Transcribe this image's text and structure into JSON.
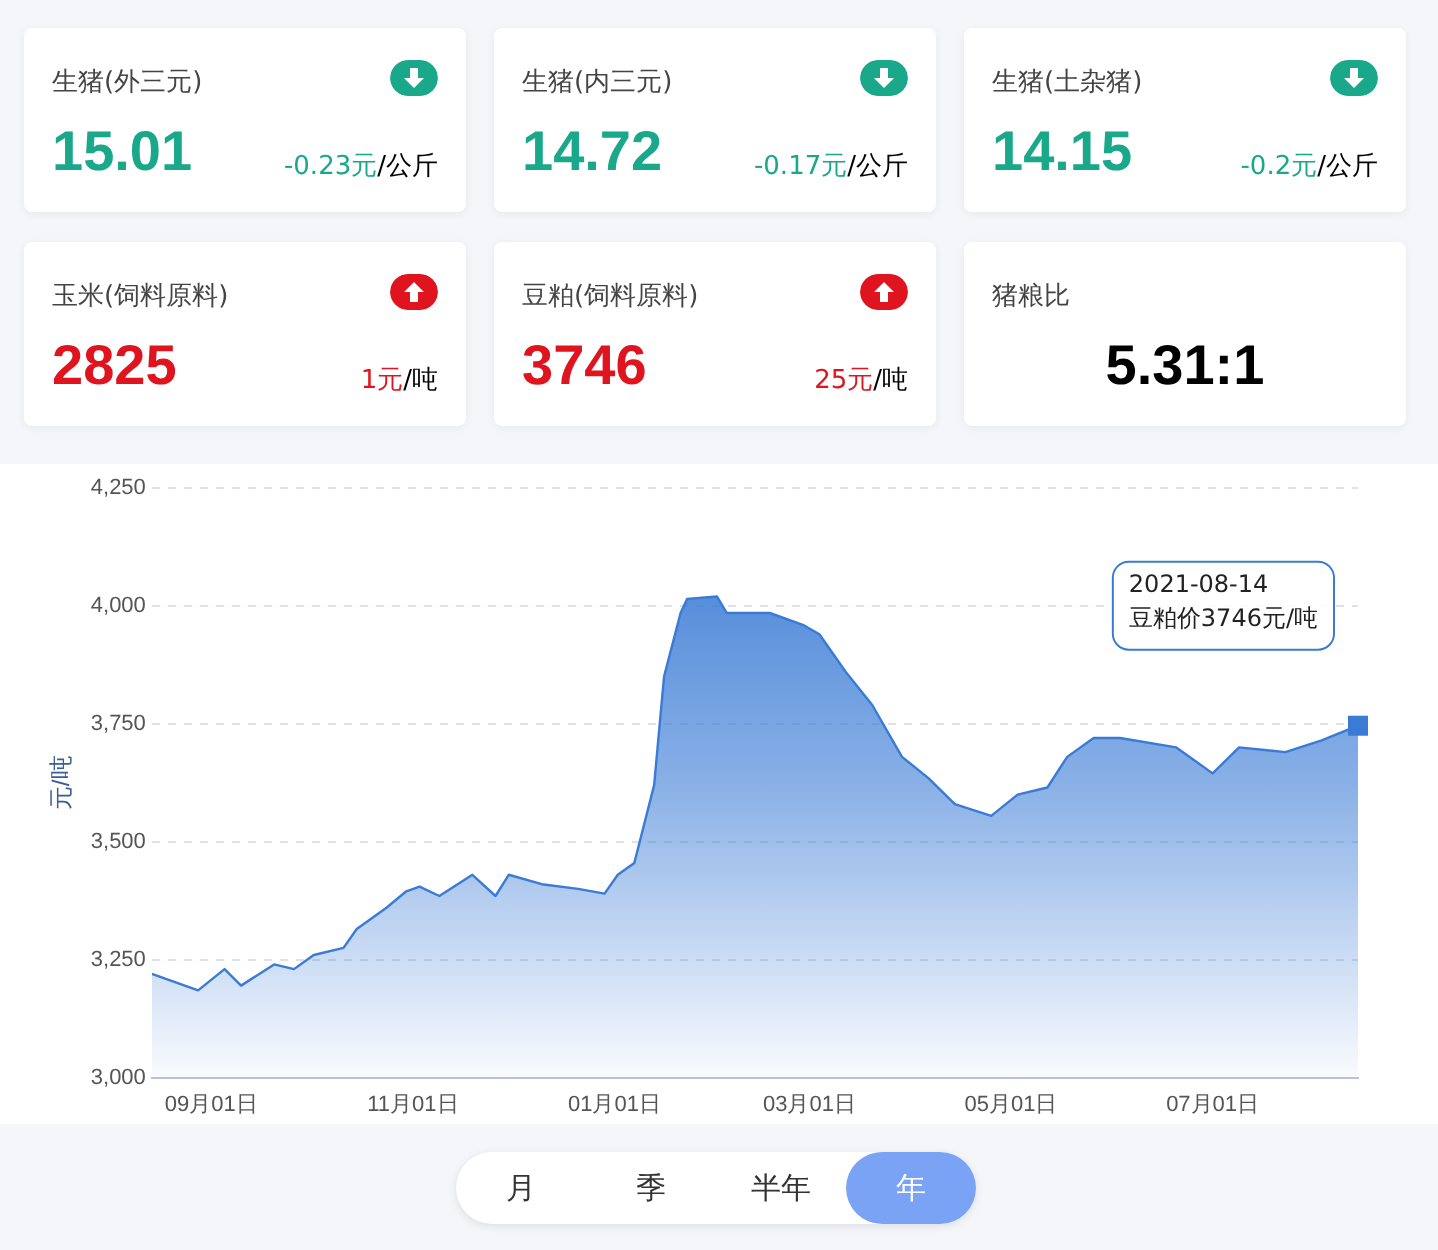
{
  "chart_data": [
    {
      "type": "other",
      "categories": [
        "生猪(外三元)",
        "生猪(内三元)",
        "生猪(土杂猪)",
        "玉米(饲料原料)",
        "豆粕(饲料原料)",
        "猪粮比"
      ],
      "value_labels": [
        "15.01",
        "14.72",
        "14.15",
        "2825",
        "3746",
        "5.31:1"
      ],
      "annotations": [
        "-0.23元/公斤",
        "-0.17元/公斤",
        "-0.2元/公斤",
        "1元/吨",
        "25元/吨"
      ]
    },
    {
      "type": "area",
      "ylabel": "元/吨",
      "x": [
        "2020-08-14",
        "2020-08-28",
        "2020-09-05",
        "2020-09-10",
        "2020-09-20",
        "2020-09-26",
        "2020-10-02",
        "2020-10-11",
        "2020-10-15",
        "2020-10-24",
        "2020-10-30",
        "2020-11-03",
        "2020-11-09",
        "2020-11-19",
        "2020-11-26",
        "2020-11-30",
        "2020-12-10",
        "2020-12-21",
        "2020-12-29",
        "2021-01-02",
        "2021-01-07",
        "2021-01-13",
        "2021-01-16",
        "2021-01-21",
        "2021-01-23",
        "2021-02-01",
        "2021-02-04",
        "2021-02-17",
        "2021-02-27",
        "2021-03-04",
        "2021-03-12",
        "2021-03-20",
        "2021-03-29",
        "2021-04-06",
        "2021-04-14",
        "2021-04-25",
        "2021-05-03",
        "2021-05-12",
        "2021-05-18",
        "2021-05-26",
        "2021-06-03",
        "2021-06-20",
        "2021-07-01",
        "2021-07-09",
        "2021-07-23",
        "2021-08-03",
        "2021-08-14"
      ],
      "series": [
        {
          "color": "#3a7bd5",
          "values": [
            3220,
            3185,
            3230,
            3195,
            3240,
            3230,
            3260,
            3275,
            3315,
            3360,
            3395,
            3405,
            3385,
            3430,
            3385,
            3430,
            3410,
            3400,
            3390,
            3430,
            3455,
            3620,
            3850,
            3985,
            4015,
            4020,
            3985,
            3985,
            3960,
            3940,
            3860,
            3790,
            3680,
            3635,
            3580,
            3555,
            3600,
            3615,
            3680,
            3720,
            3720,
            3700,
            3645,
            3700,
            3690,
            3715,
            3746
          ]
        }
      ],
      "xlim": [
        "2020-08-14",
        "2021-08-14"
      ],
      "xticks": [
        {
          "value": "2020-09-01",
          "label": "09月01日"
        },
        {
          "value": "2020-11-01",
          "label": "11月01日"
        },
        {
          "value": "2021-01-01",
          "label": "01月01日"
        },
        {
          "value": "2021-03-01",
          "label": "03月01日"
        },
        {
          "value": "2021-05-01",
          "label": "05月01日"
        },
        {
          "value": "2021-07-01",
          "label": "07月01日"
        }
      ],
      "ylim": [
        3000,
        4250
      ],
      "yticks": [
        {
          "value": 3000,
          "label": "3,000"
        },
        {
          "value": 3250,
          "label": "3,250"
        },
        {
          "value": 3500,
          "label": "3,500"
        },
        {
          "value": 3750,
          "label": "3,750"
        },
        {
          "value": 4000,
          "label": "4,000"
        },
        {
          "value": 4250,
          "label": "4,250"
        }
      ],
      "grid": "y",
      "marker": "none",
      "legend": false,
      "annotations": [
        "2021-08-14\n豆粕价3746元/吨",
        "月",
        "季",
        "半年",
        "年"
      ]
    }
  ]
}
